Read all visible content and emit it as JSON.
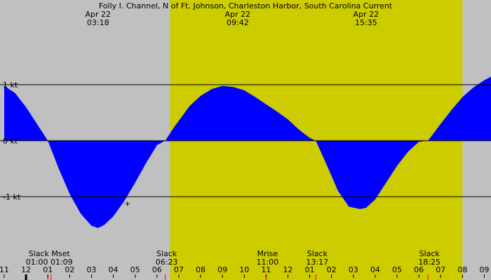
{
  "chart_data": {
    "type": "area",
    "title": "Folly I. Channel, N of Ft. Johnson, Charleston Harbor, South Carolina Current",
    "x_unit": "hour of day",
    "x_range": [
      11.0,
      33.5
    ],
    "ylim": [
      -1.6,
      1.0
    ],
    "y_ticks": [
      {
        "value": 1,
        "label": "1 kt"
      },
      {
        "value": 0,
        "label": "0 kt"
      },
      {
        "value": -1,
        "label": "-1 kt"
      }
    ],
    "x_ticks": [
      {
        "value": 11,
        "label": "11"
      },
      {
        "value": 12,
        "label": "12"
      },
      {
        "value": 13,
        "label": "01"
      },
      {
        "value": 14,
        "label": "02"
      },
      {
        "value": 15,
        "label": "03"
      },
      {
        "value": 16,
        "label": "04"
      },
      {
        "value": 17,
        "label": "05"
      },
      {
        "value": 18,
        "label": "06"
      },
      {
        "value": 19,
        "label": "07"
      },
      {
        "value": 20,
        "label": "08"
      },
      {
        "value": 21,
        "label": "09"
      },
      {
        "value": 22,
        "label": "10"
      },
      {
        "value": 23,
        "label": "11"
      },
      {
        "value": 24,
        "label": "12"
      },
      {
        "value": 25,
        "label": "01"
      },
      {
        "value": 26,
        "label": "02"
      },
      {
        "value": 27,
        "label": "03"
      },
      {
        "value": 28,
        "label": "04"
      },
      {
        "value": 29,
        "label": "05"
      },
      {
        "value": 30,
        "label": "06"
      },
      {
        "value": 31,
        "label": "07"
      },
      {
        "value": 32,
        "label": "08"
      },
      {
        "value": 33,
        "label": "09"
      }
    ],
    "daylight": {
      "start": 18.6,
      "end": 32.0
    },
    "series": [
      {
        "color_flood": "#0000ff",
        "color_ebb": "#2e8b57",
        "x": [
          11.0,
          11.5,
          12.0,
          12.5,
          13.0,
          13.5,
          14.0,
          14.5,
          15.0,
          15.3,
          15.6,
          16.0,
          16.5,
          17.0,
          17.5,
          18.0,
          18.38,
          18.8,
          19.5,
          20.0,
          20.5,
          21.0,
          21.5,
          22.0,
          22.5,
          23.0,
          23.5,
          24.0,
          24.5,
          25.0,
          25.28,
          25.8,
          26.3,
          26.8,
          27.3,
          27.58,
          28.0,
          28.5,
          29.0,
          29.5,
          30.0,
          30.42,
          31.0,
          31.5,
          32.0,
          32.5,
          33.0,
          33.5
        ],
        "y": [
          0.98,
          0.85,
          0.6,
          0.3,
          0.0,
          -0.5,
          -0.95,
          -1.3,
          -1.52,
          -1.56,
          -1.5,
          -1.35,
          -1.08,
          -0.75,
          -0.4,
          -0.08,
          0.0,
          0.25,
          0.62,
          0.8,
          0.92,
          0.98,
          0.96,
          0.9,
          0.78,
          0.65,
          0.52,
          0.38,
          0.2,
          0.05,
          0.0,
          -0.45,
          -0.9,
          -1.18,
          -1.22,
          -1.2,
          -1.05,
          -0.75,
          -0.45,
          -0.2,
          -0.02,
          0.0,
          0.3,
          0.55,
          0.78,
          0.95,
          1.08,
          1.18
        ]
      }
    ],
    "header_events": [
      {
        "x": 15.3,
        "date": "Apr 22",
        "time": "03:18"
      },
      {
        "x": 21.7,
        "date": "Apr 22",
        "time": "09:42"
      },
      {
        "x": 27.58,
        "date": "Apr 22",
        "time": "15:35"
      }
    ],
    "footer_events": [
      {
        "x": 13.0,
        "label": "Slack Mset",
        "time": "01:00 01:09"
      },
      {
        "x": 18.38,
        "label": "Slack",
        "time": "06:23"
      },
      {
        "x": 23.0,
        "label": "Mrise",
        "time": "11:00"
      },
      {
        "x": 25.28,
        "label": "Slack",
        "time": "13:17"
      },
      {
        "x": 30.42,
        "label": "Slack",
        "time": "18:25"
      }
    ],
    "red_marks": [
      13.0,
      13.15,
      18.38,
      23.0,
      25.28,
      30.42
    ],
    "black_marks": [
      12.0
    ],
    "cursor": {
      "x": 16.65,
      "y": -1.12,
      "symbol": "+"
    }
  }
}
